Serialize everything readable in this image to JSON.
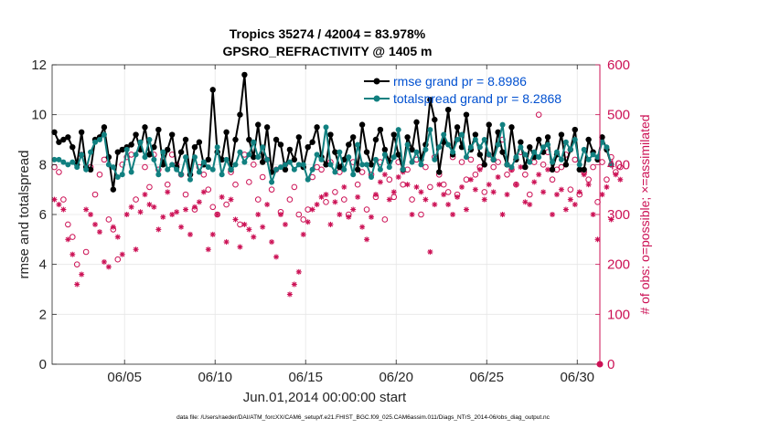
{
  "chart_data": {
    "type": "line",
    "title_line1": "Tropics 35274 / 42004 = 83.978%",
    "title_line2": "GPSRO_REFRACTIVITY @ 1405 m",
    "xlabel": "Jun.01,2014 00:00:00 start",
    "ylabel_left": "rmse and totalspread",
    "ylabel_right": "# of obs: o=possible; ×=assimilated",
    "footer": "data file: /Users/raeder/DAI/ATM_forcXX/CAM6_setup/f.e21.FHIST_BGC.f09_025.CAM6assim.011/Diags_NTrS_2014-06/obs_diag_output.nc",
    "xlim": [
      1,
      31.25
    ],
    "ylim_left": [
      0,
      12
    ],
    "ylim_right": [
      0,
      600
    ],
    "xticks": [
      5,
      10,
      15,
      20,
      25,
      30
    ],
    "xtick_labels": [
      "06/05",
      "06/10",
      "06/15",
      "06/20",
      "06/25",
      "06/30"
    ],
    "yticks_left": [
      0,
      2,
      4,
      6,
      8,
      10,
      12
    ],
    "yticks_right": [
      0,
      100,
      200,
      300,
      400,
      500,
      600
    ],
    "x_start": 1.125,
    "x_step": 0.25,
    "series": [
      {
        "name": "rmse grand pr = 8.8986",
        "axis": "left",
        "color": "#000000",
        "marker": "star",
        "values": [
          9.3,
          8.9,
          9.0,
          9.1,
          8.7,
          8.0,
          9.3,
          7.9,
          7.8,
          9.0,
          9.1,
          9.5,
          8.3,
          7.0,
          8.5,
          8.6,
          8.7,
          8.8,
          9.2,
          8.6,
          9.5,
          8.4,
          8.7,
          9.4,
          8.0,
          8.6,
          9.2,
          7.9,
          8.5,
          9.0,
          7.6,
          8.7,
          8.9,
          8.0,
          8.2,
          11.0,
          8.5,
          8.2,
          9.3,
          7.8,
          9.0,
          10.0,
          11.6,
          9.0,
          8.3,
          9.6,
          8.1,
          9.5,
          7.7,
          9.0,
          8.8,
          7.8,
          8.6,
          8.2,
          9.1,
          7.9,
          8.7,
          8.9,
          9.5,
          8.3,
          8.0,
          9.2,
          8.5,
          7.9,
          8.2,
          8.8,
          9.1,
          7.8,
          9.6,
          8.5,
          8.0,
          9.0,
          9.4,
          8.6,
          8.1,
          9.2,
          8.4,
          7.8,
          9.1,
          8.6,
          9.7,
          8.2,
          8.8,
          10.6,
          9.8,
          7.7,
          8.9,
          10.2,
          8.4,
          9.5,
          8.7,
          10.0,
          8.6,
          9.2,
          8.4,
          8.0,
          9.6,
          8.2,
          9.3,
          8.5,
          8.0,
          9.5,
          8.2,
          8.9,
          7.9,
          8.7,
          8.3,
          9.0,
          8.5,
          9.1,
          7.8,
          8.4,
          9.2,
          8.0,
          8.6,
          9.4,
          7.8,
          7.8,
          9.0,
          8.5,
          8.2,
          9.1,
          8.6,
          8.0
        ]
      },
      {
        "name": "totalspread grand pr = 8.2868",
        "axis": "left",
        "color": "#118080",
        "marker": "circle",
        "values": [
          8.2,
          8.2,
          8.1,
          8.0,
          8.1,
          7.9,
          8.4,
          7.8,
          8.5,
          8.9,
          9.0,
          9.2,
          8.0,
          7.9,
          7.5,
          7.6,
          8.6,
          7.7,
          8.4,
          8.9,
          8.3,
          9.0,
          8.2,
          7.6,
          8.5,
          7.8,
          8.0,
          7.8,
          7.6,
          8.3,
          7.4,
          8.3,
          7.7,
          8.1,
          7.9,
          7.8,
          8.7,
          7.6,
          8.2,
          7.8,
          8.0,
          8.5,
          8.1,
          8.4,
          8.9,
          8.3,
          8.7,
          8.2,
          7.3,
          7.8,
          7.9,
          8.0,
          8.1,
          7.8,
          8.0,
          8.0,
          7.4,
          7.8,
          8.4,
          8.2,
          9.5,
          8.0,
          7.7,
          8.5,
          7.8,
          8.3,
          7.6,
          8.8,
          8.0,
          8.0,
          7.5,
          8.2,
          7.8,
          8.4,
          7.9,
          8.3,
          9.4,
          7.8,
          8.8,
          8.1,
          8.5,
          8.0,
          8.6,
          9.4,
          8.2,
          8.7,
          9.2,
          8.8,
          8.5,
          9.0,
          9.2,
          8.3,
          8.7,
          9.0,
          8.7,
          9.0,
          8.4,
          8.2,
          8.8,
          9.6,
          8.0,
          7.9,
          8.3,
          8.7,
          8.4,
          8.1,
          8.5,
          8.3,
          8.7,
          8.8,
          8.1,
          8.5,
          8.2,
          8.9,
          8.6,
          9.0,
          8.0,
          8.6,
          8.2,
          8.4,
          8.3,
          8.9,
          8.7,
          8.0
        ]
      },
      {
        "name": "possible",
        "axis": "right",
        "color": "#cc1155",
        "marker": "open-circle",
        "values": [
          395,
          385,
          330,
          280,
          255,
          200,
          420,
          225,
          395,
          340,
          380,
          410,
          290,
          270,
          210,
          400,
          415,
          420,
          330,
          430,
          395,
          355,
          420,
          390,
          410,
          360,
          420,
          400,
          380,
          340,
          380,
          310,
          395,
          380,
          350,
          315,
          300,
          410,
          320,
          385,
          360,
          280,
          420,
          365,
          400,
          330,
          375,
          410,
          350,
          390,
          305,
          400,
          330,
          355,
          300,
          290,
          310,
          375,
          395,
          390,
          325,
          405,
          345,
          385,
          330,
          300,
          405,
          360,
          385,
          310,
          380,
          335,
          405,
          290,
          370,
          335,
          405,
          360,
          390,
          330,
          410,
          300,
          395,
          355,
          415,
          380,
          360,
          345,
          415,
          340,
          405,
          370,
          410,
          380,
          395,
          345,
          420,
          395,
          405,
          450,
          380,
          390,
          360,
          425,
          380,
          340,
          405,
          500,
          400,
          425,
          370,
          390,
          395,
          420,
          350,
          410,
          340,
          385,
          370,
          395,
          325,
          405,
          370,
          415,
          385,
          395
        ]
      },
      {
        "name": "assimilated",
        "axis": "right",
        "color": "#cc1155",
        "marker": "asterisk",
        "values": [
          330,
          320,
          310,
          250,
          220,
          160,
          180,
          310,
          300,
          280,
          265,
          205,
          195,
          275,
          255,
          220,
          300,
          315,
          230,
          305,
          340,
          320,
          315,
          270,
          295,
          345,
          300,
          305,
          275,
          310,
          260,
          315,
          325,
          345,
          230,
          260,
          300,
          335,
          245,
          330,
          290,
          235,
          280,
          270,
          255,
          300,
          275,
          320,
          245,
          215,
          300,
          280,
          140,
          160,
          185,
          260,
          285,
          310,
          320,
          335,
          340,
          280,
          325,
          300,
          355,
          295,
          310,
          335,
          275,
          250,
          295,
          340,
          365,
          380,
          330,
          345,
          375,
          385,
          360,
          300,
          355,
          345,
          330,
          225,
          320,
          360,
          340,
          320,
          300,
          335,
          355,
          310,
          370,
          350,
          390,
          330,
          360,
          345,
          375,
          300,
          340,
          390,
          360,
          395,
          325,
          320,
          365,
          380,
          345,
          390,
          300,
          340,
          350,
          310,
          330,
          320,
          345,
          380,
          360,
          300,
          250,
          340,
          355,
          290,
          380,
          370
        ]
      }
    ]
  },
  "colors": {
    "left_axis": "#262626",
    "right_axis": "#cc1155",
    "grid": "#e6e6e6",
    "legend_text": "#0050d0"
  }
}
